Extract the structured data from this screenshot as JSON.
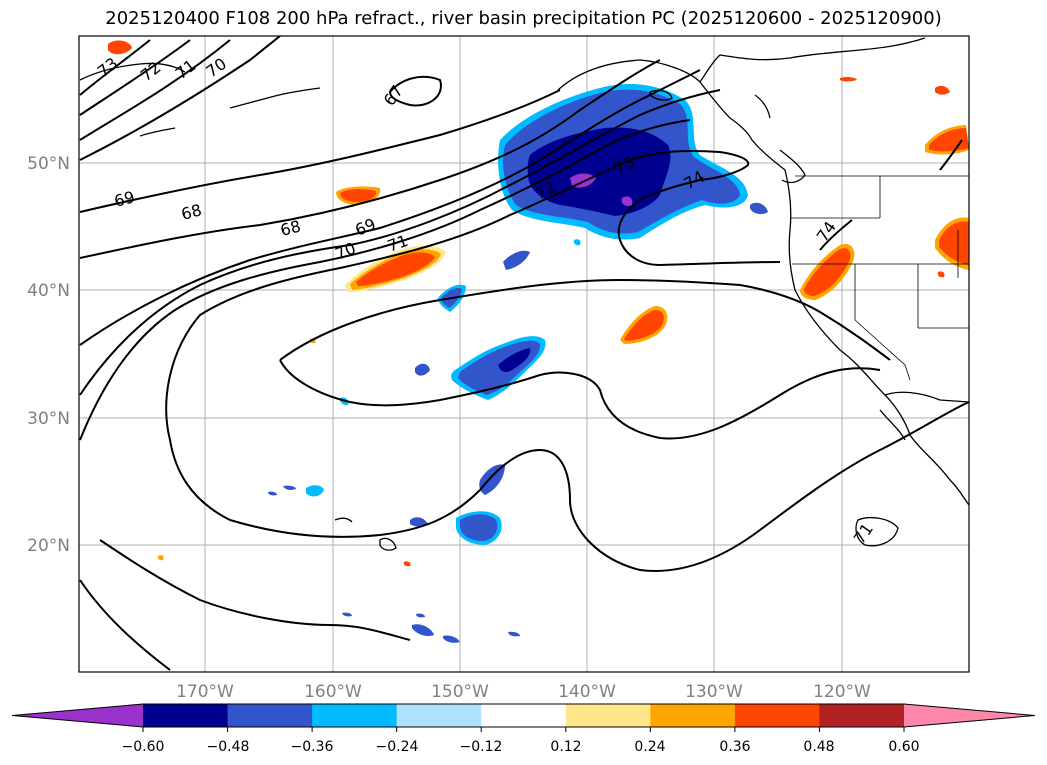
{
  "title": "2025120400 F108 200 hPa refract., river basin precipitation PC (2025120600 - 2025120900)",
  "longitude_ticks": [
    "170°W",
    "160°W",
    "150°W",
    "140°W",
    "130°W",
    "120°W"
  ],
  "latitude_ticks": [
    "50°N",
    "40°N",
    "30°N",
    "20°N"
  ],
  "contour_labels": [
    "73",
    "72",
    "71",
    "70",
    "67",
    "69",
    "68",
    "68",
    "69",
    "70",
    "71",
    "72",
    "73",
    "74",
    "74",
    "71"
  ],
  "colorbar": {
    "tick_labels": [
      "−0.60",
      "−0.48",
      "−0.36",
      "−0.24",
      "−0.12",
      "0.12",
      "0.24",
      "0.36",
      "0.48",
      "0.60"
    ],
    "colors": [
      "#9933cc",
      "#000090",
      "#3355cc",
      "#00bbff",
      "#aee0ff",
      "#ffffff",
      "#ffe68a",
      "#ffa500",
      "#ff4500",
      "#b22222",
      "#ff88aa"
    ]
  }
}
